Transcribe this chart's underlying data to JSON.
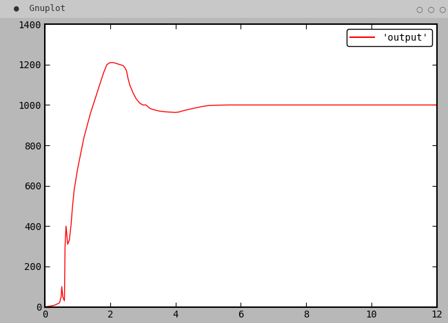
{
  "legend_label": "'output'",
  "line_color": "#ff0000",
  "bg_color": "#b8b8b8",
  "plot_bg_color": "#ffffff",
  "title_bar_color": "#c8c8c8",
  "xlim": [
    0,
    12
  ],
  "ylim": [
    0,
    1400
  ],
  "xticks": [
    0,
    2,
    4,
    6,
    8,
    10,
    12
  ],
  "yticks": [
    0,
    200,
    400,
    600,
    800,
    1000,
    1200,
    1400
  ],
  "x": [
    0.0,
    0.1,
    0.3,
    0.45,
    0.5,
    0.52,
    0.55,
    0.6,
    0.62,
    0.65,
    0.7,
    0.75,
    0.8,
    0.85,
    0.9,
    1.0,
    1.1,
    1.2,
    1.3,
    1.4,
    1.5,
    1.6,
    1.7,
    1.8,
    1.9,
    2.0,
    2.1,
    2.2,
    2.3,
    2.4,
    2.45,
    2.5,
    2.55,
    2.6,
    2.7,
    2.8,
    2.9,
    3.0,
    3.1,
    3.2,
    3.3,
    3.5,
    3.7,
    3.9,
    4.0,
    4.1,
    4.2,
    4.4,
    4.6,
    4.8,
    5.0,
    5.3,
    5.6,
    6.0,
    6.5,
    7.0,
    8.0,
    9.0,
    10.0,
    11.0,
    12.0
  ],
  "y": [
    0,
    2,
    8,
    20,
    50,
    100,
    50,
    30,
    300,
    400,
    310,
    330,
    400,
    500,
    580,
    680,
    760,
    840,
    900,
    960,
    1010,
    1060,
    1110,
    1160,
    1200,
    1210,
    1210,
    1205,
    1200,
    1195,
    1185,
    1170,
    1130,
    1100,
    1060,
    1030,
    1010,
    1000,
    1000,
    985,
    978,
    970,
    966,
    964,
    963,
    965,
    970,
    978,
    985,
    992,
    997,
    999,
    1000,
    1000,
    1000,
    1000,
    1000,
    1000,
    1000,
    1000,
    1000
  ]
}
